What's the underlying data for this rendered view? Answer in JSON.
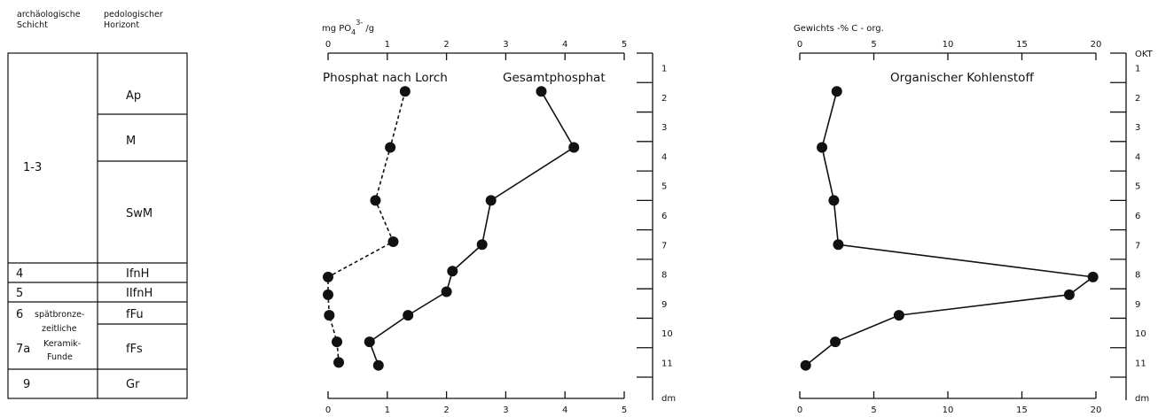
{
  "table": {
    "header_left": [
      "archäologische",
      "Schicht"
    ],
    "header_right": [
      "pedologischer",
      "Horizont"
    ],
    "rows": [
      {
        "schicht": "1-3",
        "horizonte": [
          "Ap",
          "M",
          "SwM"
        ]
      },
      {
        "schicht": "4",
        "horizonte": [
          "IfnH"
        ]
      },
      {
        "schicht": "5",
        "horizonte": [
          "IIfnH"
        ]
      },
      {
        "schicht": "6",
        "horizonte": [
          "fFu"
        ]
      },
      {
        "schicht": "7a",
        "horizonte": [
          "fFs"
        ]
      },
      {
        "schicht": "9",
        "horizonte": [
          "Gr"
        ]
      }
    ],
    "annotation": [
      "spätbronze-",
      "zeitliche",
      "Keramik-",
      "Funde"
    ]
  },
  "depth_axis_1": {
    "ticks": [
      "1",
      "2",
      "3",
      "4",
      "5",
      "6",
      "7",
      "8",
      "9",
      "10",
      "11"
    ],
    "unit": "dm"
  },
  "depth_axis_2": {
    "top_label": "OKT",
    "ticks": [
      "1",
      "2",
      "3",
      "4",
      "5",
      "6",
      "7",
      "8",
      "9",
      "10",
      "11"
    ],
    "unit": "dm"
  },
  "chart_data": [
    {
      "type": "line",
      "xlabel_top": "mg PO",
      "xlabel_top_sub": "4",
      "xlabel_top_sup": "3-",
      "xlabel_top_suffix": " /g",
      "xlim": [
        0,
        5
      ],
      "x_ticks": [
        "0",
        "1",
        "2",
        "3",
        "4",
        "5"
      ],
      "ylim": [
        0,
        11.5
      ],
      "y_inverted": true,
      "series": [
        {
          "name": "Phosphat nach Lorch",
          "style": "dashed",
          "points": [
            [
              1.3,
              1.3
            ],
            [
              1.05,
              3.2
            ],
            [
              0.8,
              5.0
            ],
            [
              1.1,
              6.4
            ],
            [
              0.0,
              7.6
            ],
            [
              0.0,
              8.2
            ],
            [
              0.02,
              8.9
            ],
            [
              0.15,
              9.8
            ],
            [
              0.18,
              10.5
            ]
          ]
        },
        {
          "name": "Gesamtphosphat",
          "style": "solid",
          "points": [
            [
              3.6,
              1.3
            ],
            [
              4.15,
              3.2
            ],
            [
              2.75,
              5.0
            ],
            [
              2.6,
              6.5
            ],
            [
              2.1,
              7.4
            ],
            [
              2.0,
              8.1
            ],
            [
              1.35,
              8.9
            ],
            [
              0.7,
              9.8
            ],
            [
              0.85,
              10.6
            ]
          ]
        }
      ]
    },
    {
      "type": "line",
      "xlabel_top": "Gewichts -% C - org.",
      "xlim": [
        0,
        20
      ],
      "x_ticks": [
        "0",
        "5",
        "10",
        "15",
        "20"
      ],
      "ylim": [
        0,
        11.5
      ],
      "y_inverted": true,
      "series": [
        {
          "name": "Organischer Kohlenstoff",
          "style": "solid",
          "points": [
            [
              2.5,
              1.3
            ],
            [
              1.5,
              3.2
            ],
            [
              2.3,
              5.0
            ],
            [
              2.6,
              6.5
            ],
            [
              19.8,
              7.6
            ],
            [
              18.2,
              8.2
            ],
            [
              6.7,
              8.9
            ],
            [
              2.4,
              9.8
            ],
            [
              0.4,
              10.6
            ]
          ]
        }
      ]
    }
  ]
}
